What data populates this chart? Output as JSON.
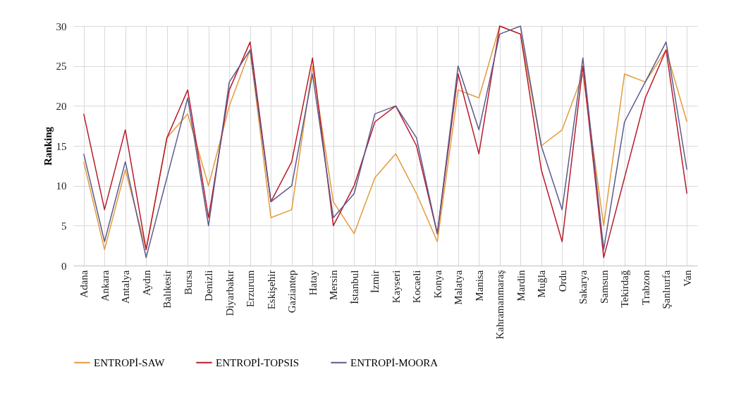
{
  "chart_data": {
    "type": "line",
    "ylabel": "Ranking",
    "categories": [
      "Adana",
      "Ankara",
      "Antalya",
      "Aydın",
      "Balıkesir",
      "Bursa",
      "Denizli",
      "Diyarbakır",
      "Erzurum",
      "Eskişehir",
      "Gaziantep",
      "Hatay",
      "Mersin",
      "İstanbul",
      "İzmir",
      "Kayseri",
      "Kocaeli",
      "Konya",
      "Malatya",
      "Manisa",
      "Kahramanmaraş",
      "Mardin",
      "Muğla",
      "Ordu",
      "Sakarya",
      "Samsun",
      "Tekirdağ",
      "Trabzon",
      "Şanlıurfa",
      "Van"
    ],
    "series": [
      {
        "name": "ENTROPİ-SAW",
        "color": "#e39a3c",
        "values": [
          13,
          2,
          12,
          2,
          16,
          19,
          10,
          20,
          27,
          6,
          7,
          25,
          8,
          4,
          11,
          14,
          9,
          3,
          22,
          21,
          30,
          29,
          15,
          17,
          24,
          5,
          24,
          23,
          27,
          18
        ]
      },
      {
        "name": "ENTROPİ-TOPSIS",
        "color": "#b8192b",
        "values": [
          19,
          7,
          17,
          2,
          16,
          22,
          6,
          22,
          28,
          8,
          13,
          26,
          5,
          10,
          18,
          20,
          15,
          4,
          24,
          14,
          30,
          29,
          12,
          3,
          25,
          1,
          11,
          21,
          27,
          9
        ]
      },
      {
        "name": "ENTROPİ-MOORA",
        "color": "#5c5a8c",
        "values": [
          14,
          3,
          13,
          1,
          11,
          21,
          5,
          23,
          27,
          8,
          10,
          24,
          6,
          9,
          19,
          20,
          16,
          4,
          25,
          17,
          29,
          30,
          15,
          7,
          26,
          2,
          18,
          23,
          28,
          12
        ]
      }
    ],
    "ylim": [
      0,
      30
    ],
    "yticks": [
      0,
      5,
      10,
      15,
      20,
      25,
      30
    ],
    "grid": true,
    "legend": "bottom"
  }
}
